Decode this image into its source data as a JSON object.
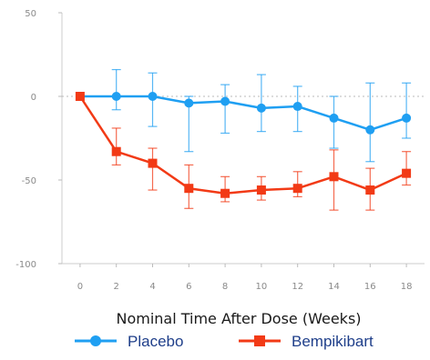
{
  "chart_data": {
    "type": "line",
    "xlabel": "Nominal Time After Dose (Weeks)",
    "ylabel": "",
    "title": "",
    "x": [
      0,
      2,
      4,
      6,
      8,
      10,
      12,
      14,
      16,
      18
    ],
    "xticks": [
      "0",
      "2",
      "4",
      "6",
      "8",
      "10",
      "12",
      "14",
      "16",
      "18"
    ],
    "yticks": [
      "50",
      "0",
      "-50",
      "-100"
    ],
    "xlim": [
      -1,
      19
    ],
    "ylim": [
      -100,
      50
    ],
    "reference_line_y": 0,
    "grid": false,
    "legend_position": "bottom",
    "series": [
      {
        "name": "Placebo",
        "color": "#1f9ff2",
        "marker": "circle",
        "values": [
          0,
          0,
          0,
          -4,
          -3,
          -7,
          -6,
          -13,
          -20,
          -13
        ],
        "err_low": [
          0,
          8,
          18,
          29,
          19,
          14,
          15,
          18,
          19,
          12
        ],
        "err_high": [
          0,
          16,
          14,
          4,
          10,
          20,
          12,
          13,
          28,
          21
        ]
      },
      {
        "name": "Bempikibart",
        "color": "#f23a16",
        "marker": "square",
        "values": [
          0,
          -33,
          -40,
          -55,
          -58,
          -56,
          -55,
          -48,
          -56,
          -46
        ],
        "err_low": [
          0,
          8,
          16,
          12,
          5,
          6,
          5,
          20,
          12,
          7
        ],
        "err_high": [
          0,
          14,
          9,
          14,
          10,
          8,
          10,
          16,
          13,
          13
        ]
      }
    ]
  }
}
